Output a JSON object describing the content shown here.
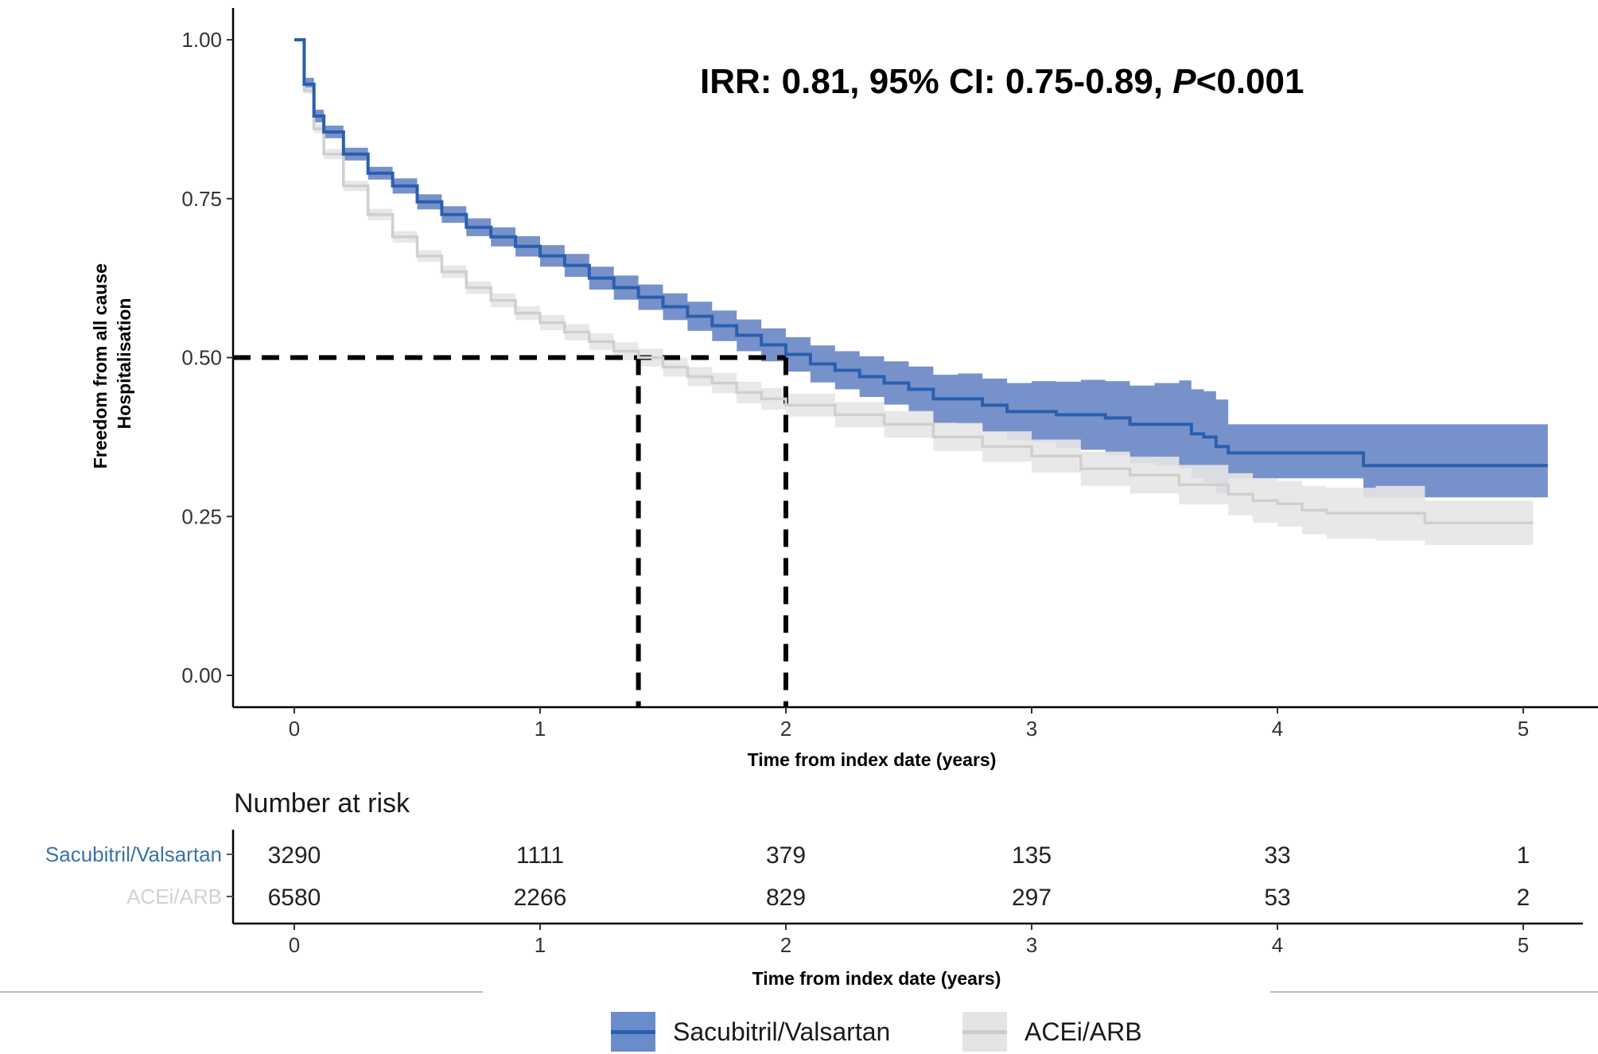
{
  "chart_data": {
    "type": "line",
    "subtype": "kaplan-meier",
    "annotation": {
      "prefix": "IRR: 0.81, 95% CI: 0.75-0.89, ",
      "p_symbol": "P",
      "suffix": "<0.001"
    },
    "ylabel_lines": [
      "Freedom from all cause",
      "Hospitalisation"
    ],
    "xlabel": "Time from index date (years)",
    "ylim": [
      0,
      1
    ],
    "xlim": [
      0,
      5.1
    ],
    "y_ticks": [
      "0.00",
      "0.25",
      "0.50",
      "0.75",
      "1.00"
    ],
    "y_tick_values": [
      0,
      0.25,
      0.5,
      0.75,
      1.0
    ],
    "x_ticks": [
      "0",
      "1",
      "2",
      "3",
      "4",
      "5"
    ],
    "x_tick_values": [
      0,
      1,
      2,
      3,
      4,
      5
    ],
    "grid": false,
    "legend_position": "bottom",
    "series": [
      {
        "name": "Sacubitril/Valsartan",
        "color": "#2a5fae",
        "band_color": "#5f7fc2",
        "x": [
          0,
          0.04,
          0.08,
          0.12,
          0.2,
          0.3,
          0.4,
          0.5,
          0.6,
          0.7,
          0.8,
          0.9,
          1.0,
          1.1,
          1.2,
          1.3,
          1.4,
          1.5,
          1.6,
          1.7,
          1.8,
          1.9,
          2.0,
          2.1,
          2.2,
          2.3,
          2.4,
          2.5,
          2.6,
          2.7,
          2.8,
          2.9,
          3.0,
          3.1,
          3.2,
          3.3,
          3.4,
          3.5,
          3.6,
          3.65,
          3.7,
          3.75,
          3.8,
          4.0,
          4.2,
          4.34,
          4.35,
          5.1
        ],
        "y": [
          1.0,
          0.93,
          0.88,
          0.855,
          0.82,
          0.79,
          0.77,
          0.745,
          0.725,
          0.705,
          0.69,
          0.675,
          0.66,
          0.645,
          0.625,
          0.61,
          0.595,
          0.58,
          0.565,
          0.55,
          0.535,
          0.52,
          0.505,
          0.49,
          0.48,
          0.47,
          0.46,
          0.45,
          0.435,
          0.435,
          0.425,
          0.415,
          0.415,
          0.41,
          0.41,
          0.405,
          0.395,
          0.395,
          0.395,
          0.38,
          0.375,
          0.36,
          0.35,
          0.35,
          0.35,
          0.35,
          0.33,
          0.33
        ],
        "lower": [
          1.0,
          0.92,
          0.87,
          0.845,
          0.81,
          0.78,
          0.758,
          0.733,
          0.712,
          0.691,
          0.675,
          0.659,
          0.643,
          0.627,
          0.607,
          0.591,
          0.575,
          0.559,
          0.542,
          0.526,
          0.51,
          0.494,
          0.478,
          0.461,
          0.45,
          0.438,
          0.426,
          0.414,
          0.397,
          0.395,
          0.383,
          0.37,
          0.367,
          0.358,
          0.355,
          0.347,
          0.334,
          0.33,
          0.326,
          0.31,
          0.303,
          0.286,
          0.31,
          0.31,
          0.31,
          0.31,
          0.28,
          0.28
        ],
        "upper": [
          1.0,
          0.94,
          0.89,
          0.865,
          0.83,
          0.8,
          0.782,
          0.757,
          0.738,
          0.719,
          0.705,
          0.691,
          0.677,
          0.663,
          0.643,
          0.629,
          0.615,
          0.601,
          0.588,
          0.574,
          0.56,
          0.546,
          0.532,
          0.519,
          0.51,
          0.502,
          0.494,
          0.486,
          0.473,
          0.475,
          0.467,
          0.46,
          0.463,
          0.462,
          0.465,
          0.463,
          0.456,
          0.46,
          0.464,
          0.45,
          0.447,
          0.434,
          0.395,
          0.395,
          0.395,
          0.395,
          0.395,
          0.395
        ]
      },
      {
        "name": "ACEi/ARB",
        "color": "#cfcfcf",
        "band_color": "#e6e6e6",
        "x": [
          0,
          0.04,
          0.08,
          0.12,
          0.2,
          0.3,
          0.4,
          0.5,
          0.6,
          0.7,
          0.8,
          0.9,
          1.0,
          1.1,
          1.2,
          1.3,
          1.4,
          1.5,
          1.6,
          1.7,
          1.8,
          1.9,
          2.0,
          2.2,
          2.4,
          2.6,
          2.8,
          3.0,
          3.2,
          3.4,
          3.6,
          3.8,
          3.9,
          4.0,
          4.1,
          4.2,
          4.4,
          4.6,
          5.04
        ],
        "y": [
          1.0,
          0.92,
          0.86,
          0.82,
          0.77,
          0.725,
          0.69,
          0.66,
          0.635,
          0.61,
          0.59,
          0.57,
          0.555,
          0.54,
          0.525,
          0.51,
          0.5,
          0.485,
          0.47,
          0.46,
          0.445,
          0.435,
          0.425,
          0.41,
          0.395,
          0.375,
          0.36,
          0.345,
          0.325,
          0.315,
          0.3,
          0.285,
          0.275,
          0.27,
          0.26,
          0.255,
          0.255,
          0.24,
          0.24
        ],
        "lower": [
          1.0,
          0.915,
          0.853,
          0.812,
          0.762,
          0.716,
          0.681,
          0.651,
          0.625,
          0.6,
          0.579,
          0.559,
          0.543,
          0.527,
          0.512,
          0.496,
          0.486,
          0.47,
          0.455,
          0.444,
          0.428,
          0.418,
          0.407,
          0.39,
          0.374,
          0.353,
          0.336,
          0.319,
          0.298,
          0.286,
          0.269,
          0.252,
          0.24,
          0.234,
          0.222,
          0.215,
          0.212,
          0.205,
          0.205
        ],
        "upper": [
          1.0,
          0.925,
          0.867,
          0.828,
          0.778,
          0.734,
          0.699,
          0.669,
          0.645,
          0.62,
          0.601,
          0.581,
          0.567,
          0.553,
          0.538,
          0.524,
          0.514,
          0.5,
          0.485,
          0.476,
          0.462,
          0.452,
          0.443,
          0.43,
          0.416,
          0.397,
          0.384,
          0.371,
          0.352,
          0.344,
          0.331,
          0.318,
          0.31,
          0.306,
          0.298,
          0.295,
          0.298,
          0.275,
          0.275
        ]
      }
    ],
    "reference_lines": [
      {
        "y": 0.5,
        "x_from": 0,
        "x_to": 2.0
      },
      {
        "x": 1.4,
        "y_from": 0,
        "y_to": 0.5
      },
      {
        "x": 2.0,
        "y_from": 0,
        "y_to": 0.5
      }
    ],
    "risk_table": {
      "title": "Number at risk",
      "xlabel": "Time from index date (years)",
      "rows": [
        {
          "name": "Sacubitril/Valsartan",
          "color": "#3a73a8",
          "values": [
            "3290",
            "1111",
            "379",
            "135",
            "33",
            "1"
          ]
        },
        {
          "name": "ACEi/ARB",
          "color": "#d2d2d2",
          "values": [
            "6580",
            "2266",
            "829",
            "297",
            "53",
            "2"
          ]
        }
      ]
    }
  },
  "legend": [
    {
      "label": "Sacubitril/Valsartan",
      "band_color": "#6a8ccb",
      "line_color": "#2a5fae"
    },
    {
      "label": "ACEi/ARB",
      "band_color": "#e4e4e4",
      "line_color": "#cccccc"
    }
  ]
}
